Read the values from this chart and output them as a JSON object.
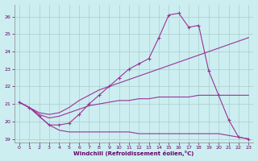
{
  "background_color": "#cceef0",
  "grid_color": "#aacccc",
  "line_color": "#993399",
  "xlabel": "Windchill (Refroidissement éolien,°C)",
  "xlabel_color": "#660066",
  "tick_color": "#660066",
  "xlim": [
    -0.5,
    23.5
  ],
  "ylim": [
    18.8,
    26.7
  ],
  "yticks": [
    19,
    20,
    21,
    22,
    23,
    24,
    25,
    26
  ],
  "xticks": [
    0,
    1,
    2,
    3,
    4,
    5,
    6,
    7,
    8,
    9,
    10,
    11,
    12,
    13,
    14,
    15,
    16,
    17,
    18,
    19,
    20,
    21,
    22,
    23
  ],
  "curve1_x": [
    0,
    1,
    2,
    3,
    4,
    5,
    6,
    7,
    8,
    9,
    10,
    11,
    12,
    13,
    14,
    15,
    16,
    17,
    18,
    19,
    20,
    21,
    22,
    23
  ],
  "curve1_y": [
    21.1,
    20.8,
    20.3,
    19.8,
    19.8,
    19.9,
    20.4,
    21.0,
    21.5,
    22.0,
    22.5,
    23.0,
    23.3,
    23.6,
    24.8,
    26.1,
    26.2,
    25.4,
    25.5,
    22.9,
    21.5,
    20.1,
    19.1,
    19.0
  ],
  "curve2_x": [
    0,
    1,
    2,
    3,
    4,
    5,
    6,
    7,
    8,
    9,
    10,
    11,
    12,
    13,
    14,
    15,
    16,
    17,
    18,
    19,
    20,
    21,
    22,
    23
  ],
  "curve2_y": [
    21.1,
    20.8,
    20.5,
    20.4,
    20.5,
    20.8,
    21.2,
    21.5,
    21.8,
    22.0,
    22.2,
    22.4,
    22.6,
    22.8,
    23.0,
    23.2,
    23.4,
    23.6,
    23.8,
    24.0,
    24.2,
    24.4,
    24.6,
    24.8
  ],
  "curve3_x": [
    0,
    1,
    2,
    3,
    4,
    5,
    6,
    7,
    8,
    9,
    10,
    11,
    12,
    13,
    14,
    15,
    16,
    17,
    18,
    19,
    20,
    21,
    22,
    23
  ],
  "curve3_y": [
    21.1,
    20.8,
    20.4,
    20.2,
    20.3,
    20.5,
    20.7,
    20.9,
    21.0,
    21.1,
    21.2,
    21.2,
    21.3,
    21.3,
    21.4,
    21.4,
    21.4,
    21.4,
    21.5,
    21.5,
    21.5,
    21.5,
    21.5,
    21.5
  ],
  "curve4_x": [
    0,
    1,
    2,
    3,
    4,
    5,
    6,
    7,
    8,
    9,
    10,
    11,
    12,
    13,
    14,
    15,
    16,
    17,
    18,
    19,
    20,
    21,
    22,
    23
  ],
  "curve4_y": [
    21.1,
    20.8,
    20.3,
    19.8,
    19.5,
    19.4,
    19.4,
    19.4,
    19.4,
    19.4,
    19.4,
    19.4,
    19.3,
    19.3,
    19.3,
    19.3,
    19.3,
    19.3,
    19.3,
    19.3,
    19.3,
    19.2,
    19.1,
    19.0
  ]
}
